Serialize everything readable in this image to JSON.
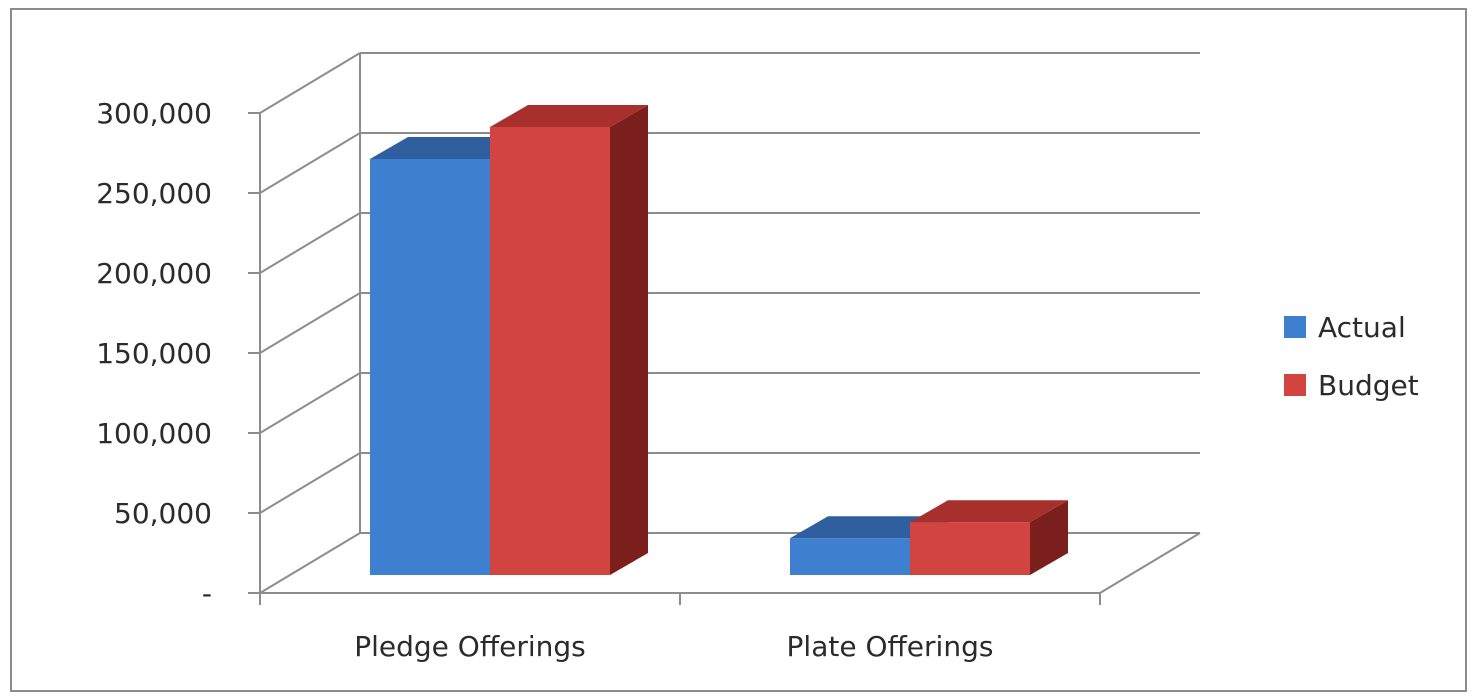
{
  "chart_data": {
    "type": "bar",
    "style": "3d-clustered-column",
    "categories": [
      "Pledge Offerings",
      "Plate Offerings"
    ],
    "series": [
      {
        "name": "Actual",
        "values": [
          260000,
          23000
        ],
        "color": "#3F7FD0"
      },
      {
        "name": "Budget",
        "values": [
          280000,
          33000
        ],
        "color": "#D24440"
      }
    ],
    "ylim": [
      0,
      300000
    ],
    "ytick_values": [
      0,
      50000,
      100000,
      150000,
      200000,
      250000,
      300000
    ],
    "ytick_labels": [
      "-",
      "50,000",
      "100,000",
      "150,000",
      "200,000",
      "250,000",
      "300,000"
    ],
    "grid": true,
    "legend_position": "right",
    "title": "",
    "xlabel": "",
    "ylabel": ""
  },
  "colors": {
    "actual_front": "#3F7FD0",
    "actual_top": "#2F5F9E",
    "actual_side": "#23497A",
    "budget_front": "#D24440",
    "budget_top": "#A8302C",
    "budget_side": "#7A1F1C",
    "grid": "#8c8c8c",
    "axis": "#8c8c8c"
  }
}
